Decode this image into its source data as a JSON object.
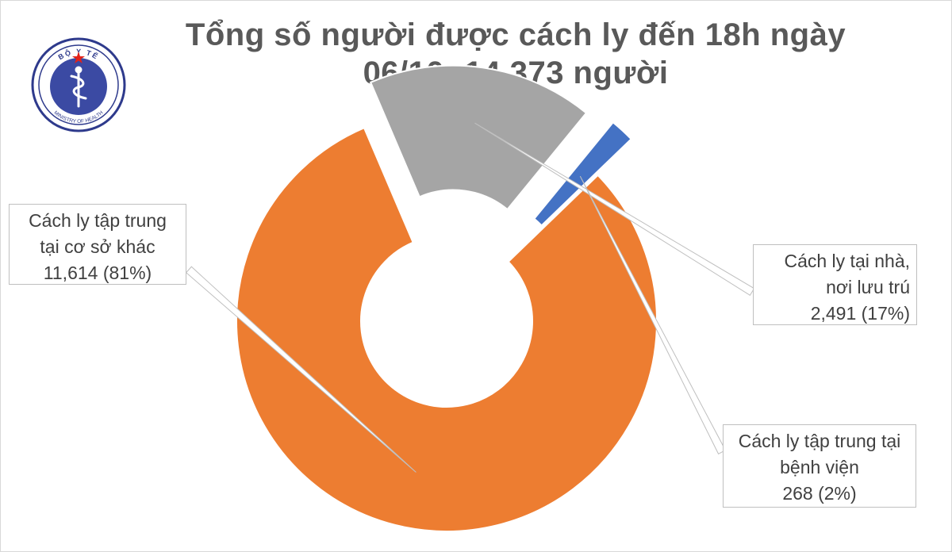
{
  "title_line1": "Tổng số người được cách ly đến 18h ngày",
  "title_line2": "06/10: 14.373 người",
  "logo": {
    "top_text": "BỘ Y TẾ",
    "bottom_text": "MINISTRY OF HEALTH",
    "colors": {
      "ring": "#2e3a8c",
      "inner": "#3b4aa3",
      "star": "#e32219",
      "flag": "#e32219"
    }
  },
  "chart_data": {
    "type": "pie",
    "style": "donut-exploded",
    "title": "Tổng số người được cách ly đến 18h ngày 06/10: 14.373 người",
    "categories": [
      "Cách ly tập trung tại cơ sở khác",
      "Cách ly tại nhà, nơi lưu trú",
      "Cách ly tập trung tại bệnh viện"
    ],
    "values": [
      11614,
      2491,
      268
    ],
    "percent_labels": [
      "81%",
      "17%",
      "2%"
    ],
    "colors": [
      "#ed7d31",
      "#a5a5a5",
      "#4472c4"
    ],
    "labels": [
      {
        "line1": "Cách ly tập trung",
        "line2": "tại cơ sở khác",
        "line3": "11,614 (81%)"
      },
      {
        "line1": "Cách ly tại nhà,",
        "line2": "nơi lưu trú",
        "line3": "2,491 (17%)"
      },
      {
        "line1": "Cách ly tập trung tại",
        "line2": "bệnh viện",
        "line3": "268 (2%)"
      }
    ],
    "legend": "none"
  }
}
